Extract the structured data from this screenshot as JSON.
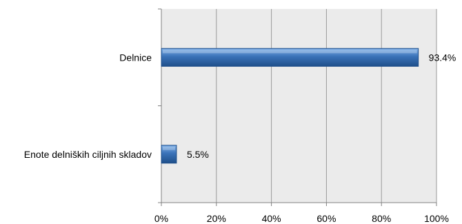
{
  "chart_data": {
    "type": "bar",
    "orientation": "horizontal",
    "categories": [
      "Delnice",
      "Enote delniških ciljnih skladov"
    ],
    "values": [
      93.4,
      5.5
    ],
    "value_labels": [
      "93.4%",
      "5.5%"
    ],
    "title": "",
    "xlabel": "",
    "ylabel": "",
    "xlim": [
      0,
      100
    ],
    "xticks": [
      0,
      20,
      40,
      60,
      80,
      100
    ],
    "xtick_labels": [
      "0%",
      "20%",
      "40%",
      "60%",
      "80%",
      "100%"
    ],
    "grid": true,
    "legend": "none",
    "colors": {
      "bar_fill": "#3a72b8",
      "bar_light": "#7fb0e8",
      "bar_dark": "#1f4f8a",
      "plot_background": "#ebebeb",
      "gridline": "#9a9a9a",
      "axis": "#7f7f7f"
    }
  }
}
